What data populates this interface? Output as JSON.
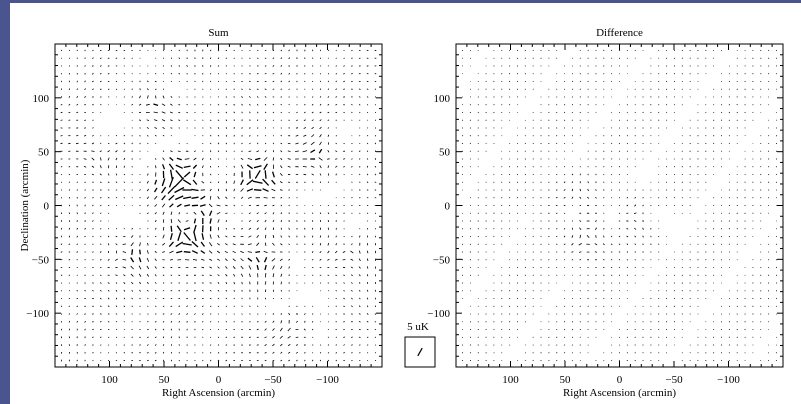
{
  "window": {
    "background_color": "#4a5590",
    "figure_background": "#ffffff"
  },
  "chart_data": [
    {
      "type": "quiver",
      "title": "Sum",
      "xlabel": "Right Ascension (arcmin)",
      "ylabel": "Declination (arcmin)",
      "xlim": [
        150,
        -150
      ],
      "ylim": [
        -150,
        150
      ],
      "x_reversed": true,
      "xticks": [
        100,
        50,
        0,
        -50,
        -100
      ],
      "yticks": [
        100,
        50,
        0,
        -50,
        -100
      ],
      "grid": false,
      "vector_field": {
        "x_start": -144,
        "x_end": 144,
        "x_step": 7.2,
        "y_start": -144,
        "y_end": 144,
        "y_step": 7.2,
        "units": "uK",
        "sources": [
          {
            "x": 33,
            "y": 25,
            "strength": 6.8,
            "sign": 1,
            "radius": 18
          },
          {
            "x": -35,
            "y": 28,
            "strength": 6.2,
            "sign": 1,
            "radius": 14
          },
          {
            "x": 30,
            "y": -28,
            "strength": 6.0,
            "sign": 1,
            "radius": 15
          },
          {
            "x": 10,
            "y": -2,
            "strength": 3.5,
            "sign": -1,
            "radius": 20
          },
          {
            "x": -40,
            "y": -45,
            "strength": 3.2,
            "sign": -1,
            "radius": 22
          },
          {
            "x": 85,
            "y": -45,
            "strength": 2.8,
            "sign": 1,
            "radius": 20
          },
          {
            "x": -95,
            "y": 45,
            "strength": 2.5,
            "sign": -1,
            "radius": 22
          },
          {
            "x": 60,
            "y": 100,
            "strength": 2.2,
            "sign": 1,
            "radius": 20
          },
          {
            "x": -70,
            "y": -110,
            "strength": 2.0,
            "sign": 1,
            "radius": 22
          },
          {
            "x": 110,
            "y": 50,
            "strength": 1.6,
            "sign": -1,
            "radius": 20
          },
          {
            "x": -120,
            "y": -40,
            "strength": 1.6,
            "sign": 1,
            "radius": 20
          }
        ],
        "background_pattern": {
          "base_uK": 0.9,
          "kx": 0.055,
          "ky": 0.048
        },
        "seed": 7
      }
    },
    {
      "type": "quiver",
      "title": "Difference",
      "xlabel": "Right Ascension (arcmin)",
      "ylabel": "",
      "xlim": [
        150,
        -150
      ],
      "ylim": [
        -150,
        150
      ],
      "x_reversed": true,
      "xticks": [
        100,
        50,
        0,
        -50,
        -100
      ],
      "yticks": [
        100,
        50,
        0,
        -50,
        -100
      ],
      "grid": false,
      "vector_field": {
        "x_start": -144,
        "x_end": 144,
        "x_step": 7.2,
        "y_start": -144,
        "y_end": 144,
        "y_step": 7.2,
        "units": "uK",
        "sources": [
          {
            "x": 30,
            "y": -28,
            "strength": 2.2,
            "sign": 1,
            "radius": 15
          },
          {
            "x": -20,
            "y": -10,
            "strength": 1.2,
            "sign": -1,
            "radius": 18
          },
          {
            "x": 40,
            "y": 5,
            "strength": 1.0,
            "sign": -1,
            "radius": 20
          }
        ],
        "background_pattern": {
          "base_uK": 0.55,
          "kx": 0.06,
          "ky": 0.05
        },
        "seed": 23
      }
    }
  ],
  "scale_key": {
    "label": "5 uK",
    "value_uK": 5,
    "angle_deg": 60
  }
}
